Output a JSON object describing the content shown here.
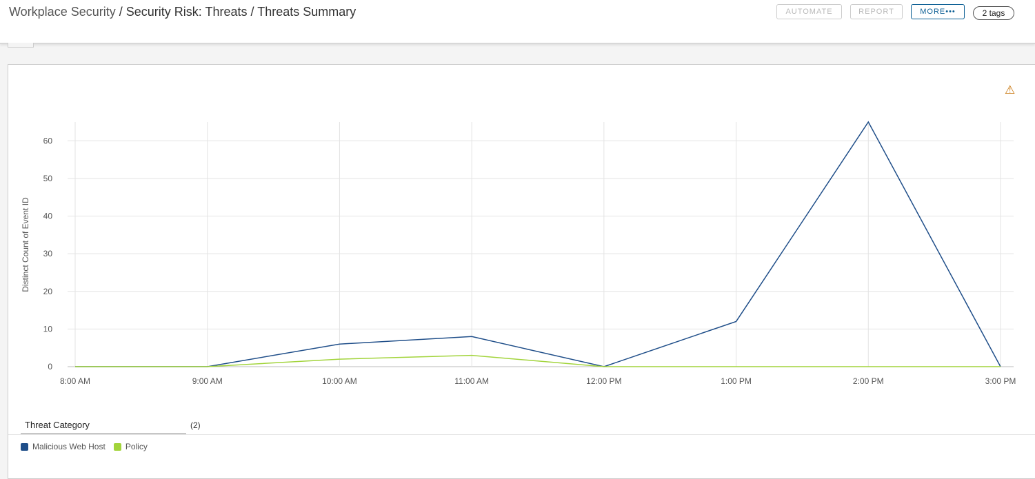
{
  "breadcrumb": {
    "part1": "Workplace Security",
    "sep": "/",
    "part2": "Security Risk: Threats",
    "part3": "Threats Summary"
  },
  "toolbar": {
    "automate": "AUTOMATE",
    "report": "REPORT",
    "more": "MORE•••",
    "tags": "2 tags"
  },
  "warning_icon": "warning-triangle-icon",
  "legend": {
    "title": "Threat Category",
    "count": "(2)",
    "items": [
      {
        "label": "Malicious Web Host",
        "color": "#1f4e89"
      },
      {
        "label": "Policy",
        "color": "#a2d43b"
      }
    ]
  },
  "chart_data": {
    "type": "line",
    "ylabel": "Distinct Count of Event ID",
    "xlabel": "",
    "categories": [
      "8:00 AM",
      "9:00 AM",
      "10:00 AM",
      "11:00 AM",
      "12:00 PM",
      "1:00 PM",
      "2:00 PM",
      "3:00 PM"
    ],
    "ylim": [
      0,
      65
    ],
    "yticks": [
      0,
      10,
      20,
      30,
      40,
      50,
      60
    ],
    "grid": true,
    "series": [
      {
        "name": "Malicious Web Host",
        "color": "#1f4e89",
        "values": [
          0,
          0,
          6,
          8,
          0,
          12,
          65,
          0
        ]
      },
      {
        "name": "Policy",
        "color": "#a2d43b",
        "values": [
          0,
          0,
          2,
          3,
          0,
          0,
          0,
          0
        ]
      }
    ]
  }
}
